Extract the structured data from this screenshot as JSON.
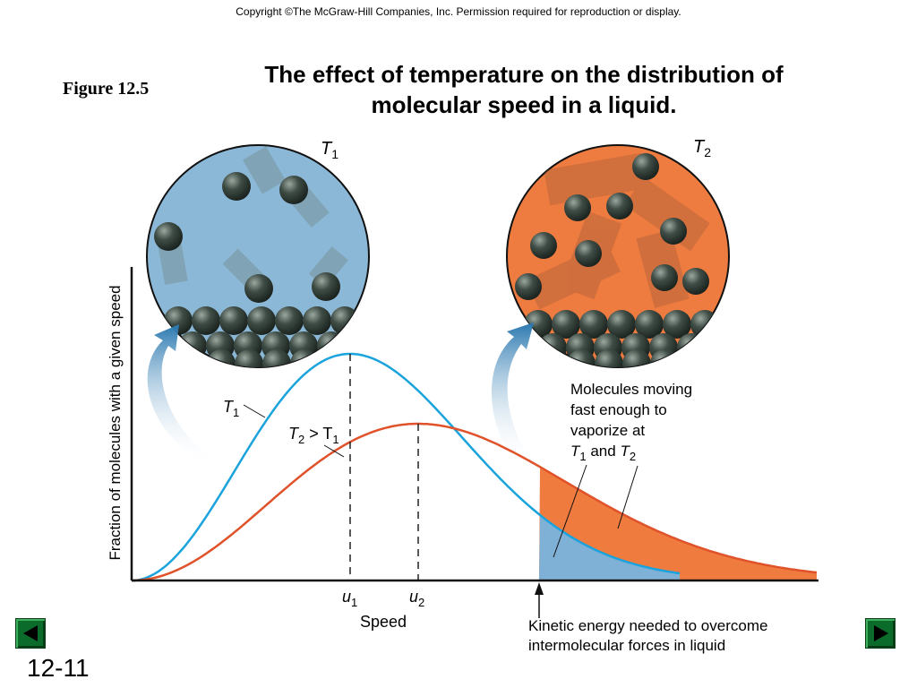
{
  "copyright": "Copyright ©The McGraw-Hill Companies, Inc.  Permission required for reproduction or display.",
  "figure_label": "Figure 12.5",
  "title_line1": "The effect of temperature on the distribution of",
  "title_line2": "molecular speed in a liquid.",
  "circle_left_label_T": "T",
  "circle_left_label_sub": "1",
  "circle_right_label_T": "T",
  "circle_right_label_sub": "2",
  "y_axis_label": "Fraction of molecules with a given speed",
  "x_axis_label": "Speed",
  "curve_label_T1": "T",
  "curve_label_T1_sub": "1",
  "curve_label_T2_main": "T",
  "curve_label_T2_sub": "2",
  "curve_label_T2_gt": " > T",
  "curve_label_T2_sub2": "1",
  "u1_label": "u",
  "u1_sub": "1",
  "u2_label": "u",
  "u2_sub": "2",
  "annotation_line1": "Molecules moving",
  "annotation_line2": "fast enough to",
  "annotation_line3": "vaporize at",
  "annotation_line4_T1": "T",
  "annotation_line4_sub1": "1",
  "annotation_line4_and": " and ",
  "annotation_line4_T2": "T",
  "annotation_line4_sub2": "2",
  "kinetic_line1": "Kinetic energy needed to overcome",
  "kinetic_line2": "intermolecular forces in liquid",
  "slide_number": "12-11",
  "colors": {
    "T1_curve": "#1aa3dc",
    "T2_curve": "#e0522a",
    "T1_fill": "#7fb0d6",
    "T2_fill": "#ef7b3f",
    "circle_T1_bg": "#8cb8d8",
    "circle_T2_bg": "#ee7b3f",
    "molecule": "#3c4a44"
  }
}
